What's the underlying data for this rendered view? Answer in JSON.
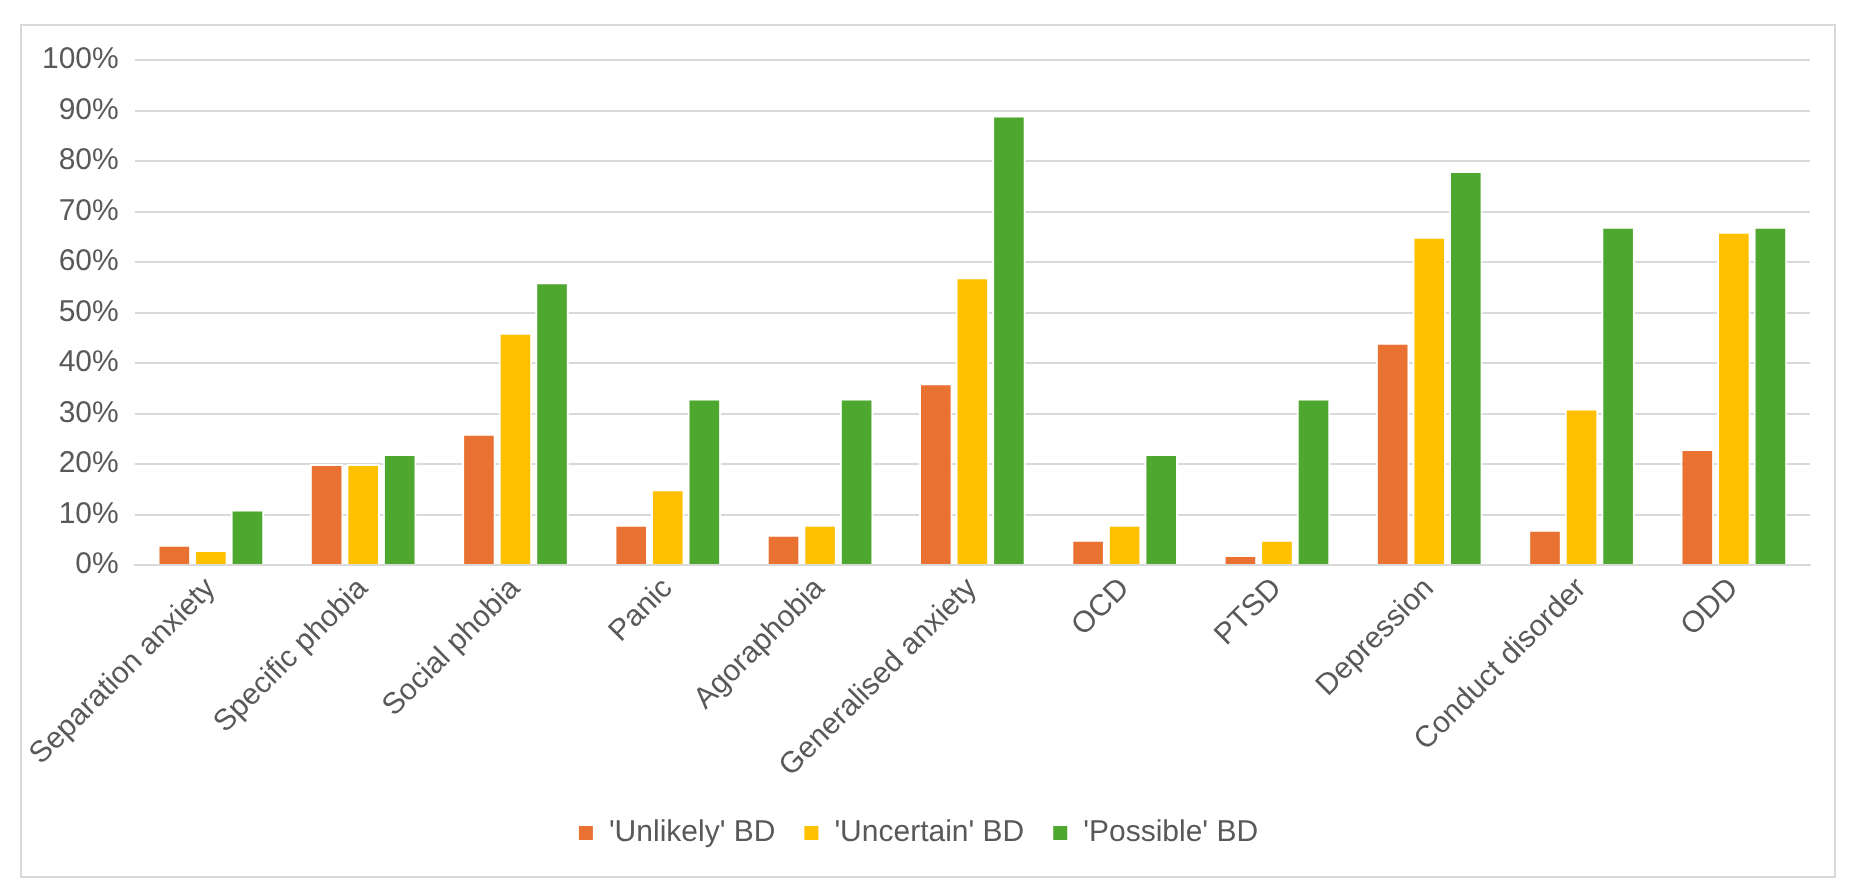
{
  "chart_data": {
    "type": "bar",
    "categories": [
      "Separation anxiety",
      "Specific phobia",
      "Social phobia",
      "Panic",
      "Agoraphobia",
      "Generalised anxiety",
      "OCD",
      "PTSD",
      "Depression",
      "Conduct disorder",
      "ODD"
    ],
    "series": [
      {
        "name": "'Unlikely' BD",
        "color": "#e97132",
        "values": [
          4,
          20,
          26,
          8,
          6,
          36,
          5,
          2,
          44,
          7,
          23
        ]
      },
      {
        "name": "'Uncertain' BD",
        "color": "#ffc000",
        "values": [
          3,
          20,
          46,
          15,
          8,
          57,
          8,
          5,
          65,
          31,
          66
        ]
      },
      {
        "name": "'Possible' BD",
        "color": "#4ea72e",
        "values": [
          11,
          22,
          56,
          33,
          33,
          89,
          22,
          33,
          78,
          67,
          67
        ]
      }
    ],
    "ylim": [
      0,
      100
    ],
    "yticks": [
      {
        "value": 0,
        "label": "0%"
      },
      {
        "value": 10,
        "label": "10%"
      },
      {
        "value": 20,
        "label": "20%"
      },
      {
        "value": 30,
        "label": "30%"
      },
      {
        "value": 40,
        "label": "40%"
      },
      {
        "value": 50,
        "label": "50%"
      },
      {
        "value": 60,
        "label": "60%"
      },
      {
        "value": 70,
        "label": "70%"
      },
      {
        "value": 80,
        "label": "80%"
      },
      {
        "value": 90,
        "label": "90%"
      },
      {
        "value": 100,
        "label": "100%"
      }
    ],
    "grid": "y",
    "legend": "bottom"
  }
}
